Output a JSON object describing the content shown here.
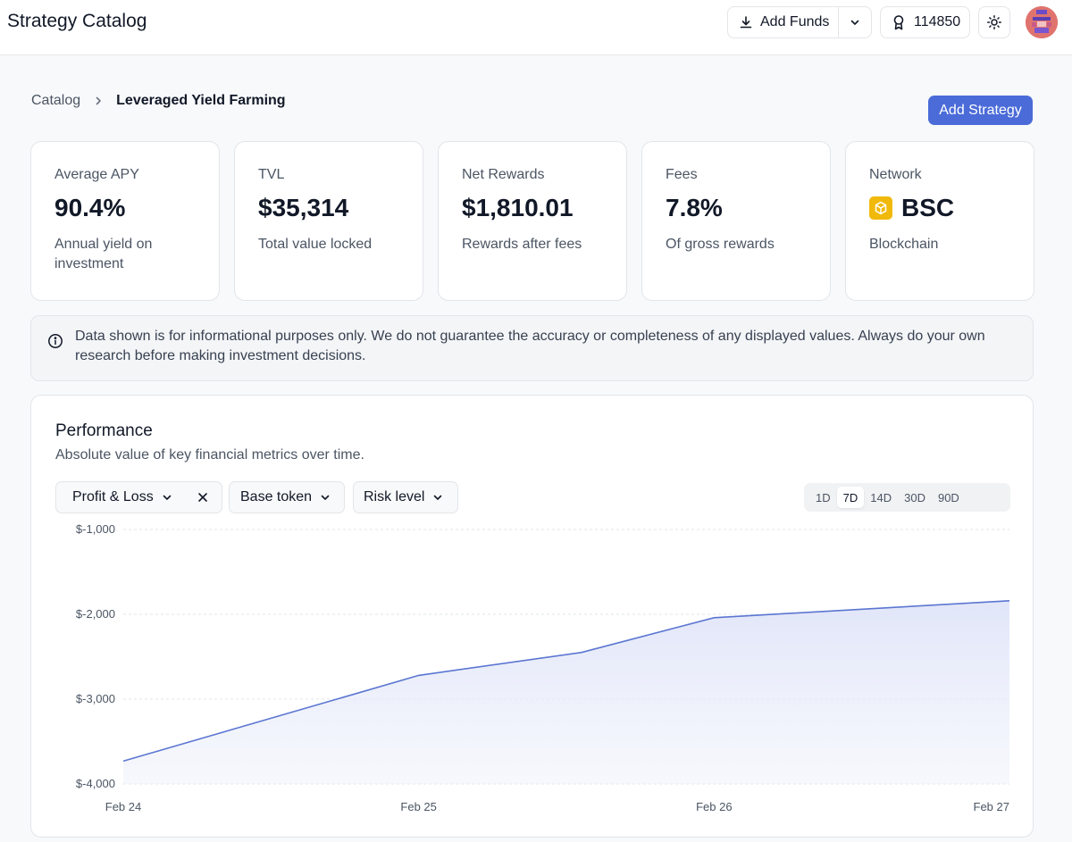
{
  "header": {
    "title": "Strategy Catalog",
    "add_funds_label": "Add Funds",
    "points": "114850"
  },
  "breadcrumb": {
    "root": "Catalog",
    "current": "Leveraged Yield Farming"
  },
  "actions": {
    "add_strategy_label": "Add Strategy"
  },
  "stats": [
    {
      "label": "Average APY",
      "value": "90.4%",
      "description": "Annual yield on investment"
    },
    {
      "label": "TVL",
      "value": "$35,314",
      "description": "Total value locked"
    },
    {
      "label": "Net Rewards",
      "value": "$1,810.01",
      "description": "Rewards after fees"
    },
    {
      "label": "Fees",
      "value": "7.8%",
      "description": "Of gross rewards"
    },
    {
      "label": "Network",
      "value": "BSC",
      "description": "Blockchain",
      "icon": "bnb-logo-icon"
    }
  ],
  "notice": {
    "text": "Data shown is for informational purposes only. We do not guarantee the accuracy or completeness of any displayed values. Always do your own research before making investment decisions."
  },
  "performance": {
    "title": "Performance",
    "subtitle": "Absolute value of key financial metrics over time.",
    "filters": {
      "metric": "Profit & Loss",
      "base_token": "Base token",
      "risk_level": "Risk level"
    },
    "ranges": [
      "1D",
      "7D",
      "14D",
      "30D",
      "90D"
    ],
    "selected_range": "7D"
  },
  "colors": {
    "accent": "#4a6bd8",
    "line": "#5b76d1",
    "area": "#e8ebfa"
  },
  "chart_data": {
    "type": "area",
    "title": "",
    "xlabel": "",
    "ylabel": "",
    "x": [
      "Feb 24",
      "Feb 25",
      "Feb 26",
      "Feb 27"
    ],
    "x_pos": [
      0,
      1,
      2,
      3
    ],
    "values": [
      -3730,
      -2720,
      -2040,
      -1840
    ],
    "x_points": [
      0,
      1,
      1.55,
      2,
      3
    ],
    "y_points": [
      -3730,
      -2720,
      -2450,
      -2040,
      -1840
    ],
    "y_ticks": [
      -1000,
      -2000,
      -3000,
      -4000
    ],
    "y_tick_labels": [
      "$-1,000",
      "$-2,000",
      "$-3,000",
      "$-4,000"
    ],
    "ylim": [
      -4000,
      -1000
    ],
    "grid": true,
    "legend": "none"
  }
}
